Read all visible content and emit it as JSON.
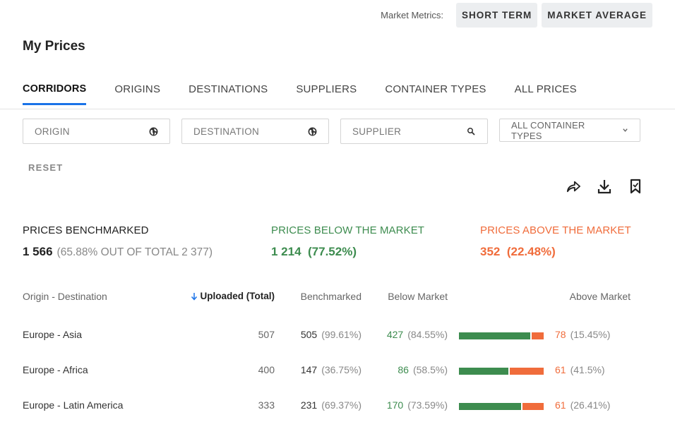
{
  "header": {
    "metrics_label": "Market Metrics:",
    "buttons": [
      "SHORT TERM",
      "MARKET AVERAGE"
    ],
    "title": "My Prices"
  },
  "tabs": [
    {
      "label": "CORRIDORS",
      "active": true
    },
    {
      "label": "ORIGINS",
      "active": false
    },
    {
      "label": "DESTINATIONS",
      "active": false
    },
    {
      "label": "SUPPLIERS",
      "active": false
    },
    {
      "label": "CONTAINER TYPES",
      "active": false
    },
    {
      "label": "ALL PRICES",
      "active": false
    }
  ],
  "filters": {
    "origin_placeholder": "ORIGIN",
    "destination_placeholder": "DESTINATION",
    "supplier_placeholder": "SUPPLIER",
    "container_types_value": "ALL CONTAINER TYPES",
    "reset_label": "RESET"
  },
  "icons": {
    "origin": "globe-icon",
    "destination": "globe-icon",
    "supplier": "search-icon",
    "select": "chevron-down-icon",
    "share": "share-icon",
    "download": "download-icon",
    "bookmark": "bookmark-icon",
    "sort": "arrow-down-icon"
  },
  "stats": {
    "benchmarked": {
      "title": "PRICES BENCHMARKED",
      "value": "1 566",
      "detail": "(65.88% OUT OF TOTAL 2 377)"
    },
    "below": {
      "title": "PRICES BELOW THE MARKET",
      "value": "1 214",
      "detail": "(77.52%)"
    },
    "above": {
      "title": "PRICES ABOVE THE MARKET",
      "value": "352",
      "detail": "(22.48%)"
    }
  },
  "table": {
    "columns": [
      "Origin - Destination",
      "Uploaded (Total)",
      "Benchmarked",
      "Below Market",
      "Above Market"
    ],
    "rows": [
      {
        "corridor": "Europe - Asia",
        "uploaded": "507",
        "benchmarked": "505",
        "benchmarked_pct": "(99.61%)",
        "below": "427",
        "below_pct": "(84.55%)",
        "above": "78",
        "above_pct": "(15.45%)",
        "below_share": 0.8455
      },
      {
        "corridor": "Europe - Africa",
        "uploaded": "400",
        "benchmarked": "147",
        "benchmarked_pct": "(36.75%)",
        "below": "86",
        "below_pct": "(58.5%)",
        "above": "61",
        "above_pct": "(41.5%)",
        "below_share": 0.585
      },
      {
        "corridor": "Europe - Latin America",
        "uploaded": "333",
        "benchmarked": "231",
        "benchmarked_pct": "(69.37%)",
        "below": "170",
        "below_pct": "(73.59%)",
        "above": "61",
        "above_pct": "(26.41%)",
        "below_share": 0.7359
      }
    ]
  },
  "colors": {
    "accent": "#1a73e8",
    "below_market": "#3d8c4f",
    "above_market": "#f06c3b"
  }
}
